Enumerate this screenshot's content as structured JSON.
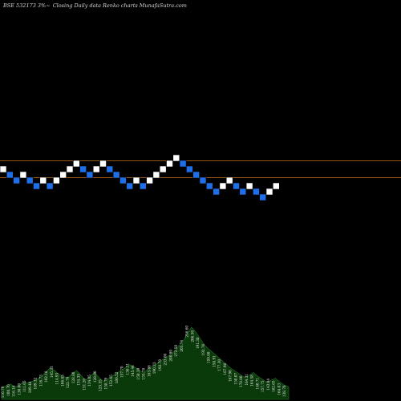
{
  "header": {
    "symbol": "BSE 532173 3%",
    "tilde": "~",
    "description": "Closing Daily data Renko charts MunafaSutra.com"
  },
  "colors": {
    "background": "#000000",
    "up_brick": "#ffffff",
    "down_brick": "#1e6fe8",
    "brick_outline": "#000000",
    "reference_line": "#c8731c",
    "volume_fill": "#0a3a0a",
    "volume_edge": "#1f5e1f"
  },
  "chart_data": {
    "type": "renko",
    "brick_direction_up": [
      true,
      false,
      false,
      true,
      false,
      false,
      true,
      false,
      true,
      true,
      true,
      true,
      false,
      false,
      true,
      true,
      false,
      false,
      false,
      false,
      true,
      false,
      true,
      true,
      true,
      true,
      true,
      false,
      false,
      false,
      false,
      false,
      false,
      true,
      true,
      false,
      false,
      true,
      false,
      false,
      true,
      true
    ],
    "brick_levels": [
      0,
      -1,
      -2,
      -1,
      -2,
      -3,
      -2,
      -3,
      -2,
      -1,
      0,
      1,
      0,
      -1,
      0,
      1,
      0,
      -1,
      -2,
      -3,
      -2,
      -3,
      -2,
      -1,
      0,
      1,
      2,
      1,
      0,
      -1,
      -2,
      -3,
      -4,
      -3,
      -2,
      -3,
      -4,
      -3,
      -4,
      -5,
      -4,
      -3
    ],
    "reference_lines": [
      1.5,
      -1.5
    ],
    "volume_values": [
      12,
      14,
      16,
      13,
      15,
      18,
      17,
      19,
      21,
      24,
      28,
      33,
      30,
      26,
      24,
      22,
      27,
      30,
      25,
      20,
      24,
      28,
      23,
      19,
      21,
      24,
      27,
      30,
      33,
      36,
      34,
      31,
      28,
      31,
      34,
      37,
      40,
      43,
      46,
      50,
      55,
      60,
      68,
      75,
      70,
      63,
      56,
      52,
      48,
      44,
      40,
      36,
      32,
      29,
      26,
      23,
      25,
      28,
      24,
      21,
      18,
      20,
      22,
      18,
      15,
      13
    ],
    "volume_labels": [
      "116.79",
      "100.70",
      "116.16",
      "130.00",
      "111.65",
      "109.46",
      "109.32",
      "116.73",
      "102.18",
      "145.33",
      "114.93",
      "106.85",
      "122.79",
      "128.80",
      "134.35",
      "151.20",
      "134.05",
      "128.00",
      "125.35",
      "158.79",
      "152.65",
      "180.52",
      "157.70",
      "136.31",
      "145.44",
      "150.39",
      "155.78",
      "163.86",
      "190.23",
      "192.70",
      "233.00",
      "208.90",
      "272.50",
      "205.74",
      "256.60",
      "206.50",
      "191.38",
      "192.76",
      "159.88",
      "158.91",
      "177.30",
      "167.98",
      "167.90",
      "150.07",
      "178.00",
      "164.31",
      "164.58",
      "140.71",
      "157.75",
      "143.04",
      "162.65",
      "164.03",
      "138.70"
    ]
  }
}
